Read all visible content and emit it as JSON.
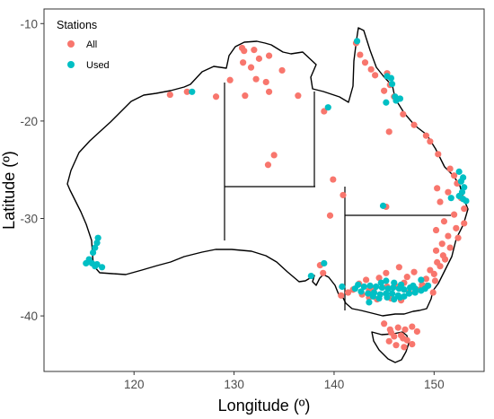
{
  "chart_data": {
    "type": "scatter",
    "title": "",
    "xlabel": "Longitude (º)",
    "ylabel": "Latitude (º)",
    "xlim": [
      111,
      155
    ],
    "ylim": [
      -45.7,
      -8.5
    ],
    "x_ticks": [
      120,
      130,
      140,
      150
    ],
    "y_ticks": [
      -10,
      -20,
      -30,
      -40
    ],
    "grid": false,
    "legend": {
      "title": "Stations",
      "position": "top-left"
    },
    "colors": {
      "All": "#F8766D",
      "Used": "#00BFC4"
    },
    "series": [
      {
        "name": "All",
        "points": [
          [
            123.6,
            -17.3
          ],
          [
            125.3,
            -17.0
          ],
          [
            128.2,
            -17.5
          ],
          [
            130.8,
            -12.5
          ],
          [
            131.0,
            -12.8
          ],
          [
            132.0,
            -12.7
          ],
          [
            132.5,
            -13.6
          ],
          [
            133.5,
            -13.3
          ],
          [
            130.9,
            -14.0
          ],
          [
            131.7,
            -14.5
          ],
          [
            134.8,
            -14.8
          ],
          [
            132.2,
            -15.7
          ],
          [
            133.2,
            -16.0
          ],
          [
            129.6,
            -15.8
          ],
          [
            133.5,
            -17.0
          ],
          [
            131.1,
            -17.4
          ],
          [
            136.4,
            -17.4
          ],
          [
            139.0,
            -19.0
          ],
          [
            134.0,
            -23.5
          ],
          [
            133.4,
            -24.5
          ],
          [
            139.9,
            -26.0
          ],
          [
            140.9,
            -27.6
          ],
          [
            139.6,
            -29.7
          ],
          [
            145.2,
            -28.8
          ],
          [
            142.2,
            -12.0
          ],
          [
            142.6,
            -13.2
          ],
          [
            143.1,
            -14.0
          ],
          [
            143.7,
            -14.7
          ],
          [
            144.1,
            -15.3
          ],
          [
            145.3,
            -15.1
          ],
          [
            145.6,
            -16.3
          ],
          [
            145.0,
            -16.9
          ],
          [
            146.0,
            -17.5
          ],
          [
            146.9,
            -19.3
          ],
          [
            148.0,
            -20.4
          ],
          [
            145.5,
            -21.1
          ],
          [
            149.2,
            -21.5
          ],
          [
            149.6,
            -22.1
          ],
          [
            150.4,
            -23.4
          ],
          [
            151.6,
            -24.9
          ],
          [
            152.0,
            -25.6
          ],
          [
            152.3,
            -26.4
          ],
          [
            150.3,
            -26.9
          ],
          [
            151.4,
            -27.3
          ],
          [
            152.7,
            -27.9
          ],
          [
            150.6,
            -28.3
          ],
          [
            153.0,
            -29.0
          ],
          [
            152.0,
            -29.6
          ],
          [
            151.0,
            -30.3
          ],
          [
            152.2,
            -31.0
          ],
          [
            153.0,
            -30.5
          ],
          [
            150.2,
            -31.2
          ],
          [
            151.4,
            -31.8
          ],
          [
            152.4,
            -32.0
          ],
          [
            150.8,
            -32.6
          ],
          [
            151.6,
            -33.0
          ],
          [
            150.2,
            -33.3
          ],
          [
            150.9,
            -33.8
          ],
          [
            151.1,
            -34.2
          ],
          [
            150.3,
            -34.5
          ],
          [
            150.6,
            -34.9
          ],
          [
            149.6,
            -35.3
          ],
          [
            150.0,
            -35.7
          ],
          [
            149.2,
            -36.2
          ],
          [
            150.1,
            -36.4
          ],
          [
            149.3,
            -36.9
          ],
          [
            149.9,
            -37.6
          ],
          [
            148.6,
            -37.3
          ],
          [
            147.5,
            -37.6
          ],
          [
            148.8,
            -36.8
          ],
          [
            148.0,
            -35.5
          ],
          [
            147.3,
            -36.0
          ],
          [
            146.5,
            -35.0
          ],
          [
            145.2,
            -35.6
          ],
          [
            144.5,
            -36.1
          ],
          [
            143.2,
            -36.3
          ],
          [
            142.5,
            -36.7
          ],
          [
            141.9,
            -37.3
          ],
          [
            142.8,
            -37.8
          ],
          [
            143.5,
            -38.1
          ],
          [
            144.3,
            -38.3
          ],
          [
            145.7,
            -38.2
          ],
          [
            146.7,
            -38.4
          ],
          [
            145.3,
            -37.0
          ],
          [
            144.0,
            -37.2
          ],
          [
            146.3,
            -37.0
          ],
          [
            147.0,
            -36.6
          ],
          [
            141.4,
            -37.6
          ],
          [
            140.7,
            -37.9
          ],
          [
            138.9,
            -35.6
          ],
          [
            138.6,
            -34.8
          ],
          [
            143.5,
            -37.4
          ],
          [
            145.0,
            -40.8
          ],
          [
            145.6,
            -41.4
          ],
          [
            146.4,
            -41.2
          ],
          [
            147.1,
            -41.4
          ],
          [
            147.8,
            -41.1
          ],
          [
            146.0,
            -42.1
          ],
          [
            146.7,
            -42.0
          ],
          [
            147.3,
            -42.5
          ],
          [
            145.5,
            -42.6
          ],
          [
            146.2,
            -43.0
          ],
          [
            147.0,
            -43.2
          ],
          [
            147.8,
            -42.9
          ],
          [
            148.3,
            -41.6
          ],
          [
            146.9,
            -42.3
          ],
          [
            145.7,
            -41.7
          ]
        ]
      },
      {
        "name": "Used",
        "points": [
          [
            115.5,
            -34.2
          ],
          [
            115.2,
            -34.6
          ],
          [
            116.1,
            -34.9
          ],
          [
            116.8,
            -35.0
          ],
          [
            116.3,
            -34.7
          ],
          [
            115.8,
            -34.6
          ],
          [
            115.9,
            -33.5
          ],
          [
            116.1,
            -33.0
          ],
          [
            116.3,
            -32.5
          ],
          [
            116.4,
            -32.0
          ],
          [
            125.8,
            -17.0
          ],
          [
            139.4,
            -18.6
          ],
          [
            137.7,
            -35.9
          ],
          [
            139.0,
            -34.6
          ],
          [
            140.8,
            -37.0
          ],
          [
            142.3,
            -11.8
          ],
          [
            145.3,
            -15.4
          ],
          [
            145.7,
            -15.6
          ],
          [
            145.8,
            -16.2
          ],
          [
            146.1,
            -17.5
          ],
          [
            146.2,
            -17.9
          ],
          [
            145.2,
            -18.1
          ],
          [
            146.6,
            -17.7
          ],
          [
            152.5,
            -25.2
          ],
          [
            152.9,
            -25.8
          ],
          [
            152.7,
            -26.2
          ],
          [
            153.0,
            -26.8
          ],
          [
            152.8,
            -27.3
          ],
          [
            152.5,
            -27.7
          ],
          [
            152.9,
            -28.0
          ],
          [
            153.2,
            -28.2
          ],
          [
            151.7,
            -27.9
          ],
          [
            144.9,
            -28.7
          ],
          [
            142.4,
            -36.8
          ],
          [
            143.0,
            -37.0
          ],
          [
            143.6,
            -36.9
          ],
          [
            144.2,
            -37.0
          ],
          [
            144.8,
            -37.1
          ],
          [
            145.4,
            -37.2
          ],
          [
            145.9,
            -37.1
          ],
          [
            146.5,
            -37.2
          ],
          [
            147.0,
            -37.3
          ],
          [
            147.6,
            -37.1
          ],
          [
            148.1,
            -37.2
          ],
          [
            148.7,
            -37.4
          ],
          [
            149.1,
            -37.2
          ],
          [
            142.7,
            -37.5
          ],
          [
            143.4,
            -37.7
          ],
          [
            144.0,
            -37.6
          ],
          [
            144.6,
            -37.8
          ],
          [
            145.2,
            -37.7
          ],
          [
            145.8,
            -37.7
          ],
          [
            146.4,
            -37.9
          ],
          [
            147.0,
            -38.0
          ],
          [
            147.5,
            -37.7
          ],
          [
            148.1,
            -37.6
          ],
          [
            143.9,
            -38.0
          ],
          [
            144.5,
            -38.2
          ],
          [
            145.3,
            -38.1
          ],
          [
            146.0,
            -38.3
          ],
          [
            146.6,
            -38.1
          ],
          [
            143.5,
            -38.6
          ],
          [
            142.1,
            -37.2
          ],
          [
            144.7,
            -36.6
          ],
          [
            146.0,
            -36.6
          ],
          [
            145.2,
            -36.4
          ],
          [
            146.7,
            -36.8
          ],
          [
            147.9,
            -36.9
          ],
          [
            148.7,
            -36.3
          ],
          [
            149.4,
            -36.9
          ]
        ]
      }
    ]
  }
}
